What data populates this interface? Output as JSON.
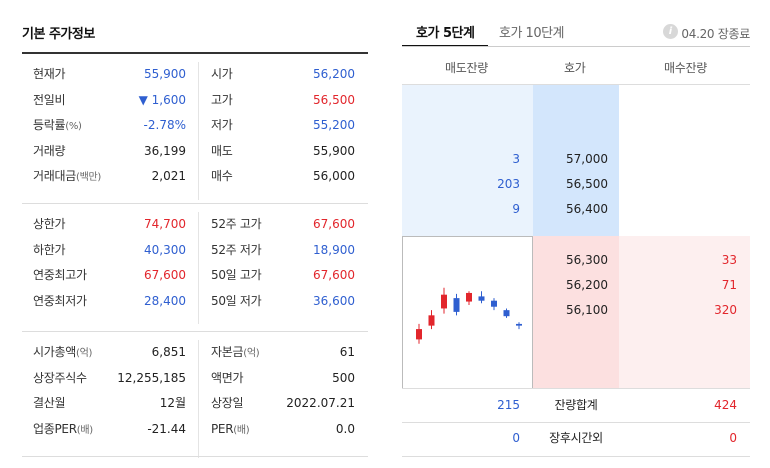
{
  "left": {
    "title": "기본 주가정보",
    "groups": [
      {
        "rows": [
          {
            "label1": "현재가",
            "unit1": "",
            "value1": "55,900",
            "color1": "blue",
            "label2": "시가",
            "unit2": "",
            "value2": "56,200",
            "color2": "blue"
          },
          {
            "label1": "전일비",
            "unit1": "",
            "value1": "▼ 1,600",
            "color1": "blue",
            "label2": "고가",
            "unit2": "",
            "value2": "56,500",
            "color2": "red"
          },
          {
            "label1": "등락률",
            "unit1": "(%)",
            "value1": "-2.78%",
            "color1": "blue",
            "label2": "저가",
            "unit2": "",
            "value2": "55,200",
            "color2": "blue"
          },
          {
            "label1": "거래량",
            "unit1": "",
            "value1": "36,199",
            "color1": "",
            "label2": "매도",
            "unit2": "",
            "value2": "55,900",
            "color2": ""
          },
          {
            "label1": "거래대금",
            "unit1": "(백만)",
            "value1": "2,021",
            "color1": "",
            "label2": "매수",
            "unit2": "",
            "value2": "56,000",
            "color2": ""
          }
        ]
      },
      {
        "rows": [
          {
            "label1": "상한가",
            "unit1": "",
            "value1": "74,700",
            "color1": "red",
            "label2": "52주 고가",
            "unit2": "",
            "value2": "67,600",
            "color2": "red"
          },
          {
            "label1": "하한가",
            "unit1": "",
            "value1": "40,300",
            "color1": "blue",
            "label2": "52주 저가",
            "unit2": "",
            "value2": "18,900",
            "color2": "blue"
          },
          {
            "label1": "연중최고가",
            "unit1": "",
            "value1": "67,600",
            "color1": "red",
            "label2": "50일 고가",
            "unit2": "",
            "value2": "67,600",
            "color2": "red"
          },
          {
            "label1": "연중최저가",
            "unit1": "",
            "value1": "28,400",
            "color1": "blue",
            "label2": "50일 저가",
            "unit2": "",
            "value2": "36,600",
            "color2": "blue"
          }
        ]
      },
      {
        "rows": [
          {
            "label1": "시가총액",
            "unit1": "(억)",
            "value1": "6,851",
            "color1": "",
            "label2": "자본금",
            "unit2": "(억)",
            "value2": "61",
            "color2": ""
          },
          {
            "label1": "상장주식수",
            "unit1": "",
            "value1": "12,255,185",
            "color1": "",
            "label2": "액면가",
            "unit2": "",
            "value2": "500",
            "color2": ""
          },
          {
            "label1": "결산월",
            "unit1": "",
            "value1": "12월",
            "color1": "",
            "label2": "상장일",
            "unit2": "",
            "value2": "2022.07.21",
            "color2": ""
          },
          {
            "label1": "업종PER",
            "unit1": "(배)",
            "value1": "-21.44",
            "color1": "",
            "label2": "PER",
            "unit2": "(배)",
            "value2": "0.0",
            "color2": ""
          }
        ]
      }
    ]
  },
  "right": {
    "tabs": [
      {
        "label": "호가 5단계",
        "active": true
      },
      {
        "label": "호가 10단계",
        "active": false
      }
    ],
    "info_icon": "info-icon",
    "market_time": "04.20 장종료",
    "headers": {
      "sell": "매도잔량",
      "price": "호가",
      "buy": "매수잔량"
    },
    "asks": [
      {
        "volume": "3",
        "price": "57,000"
      },
      {
        "volume": "203",
        "price": "56,500"
      },
      {
        "volume": "9",
        "price": "56,400"
      }
    ],
    "bids": [
      {
        "price": "56,300",
        "volume": "33"
      },
      {
        "price": "56,200",
        "volume": "71"
      },
      {
        "price": "56,100",
        "volume": "320"
      }
    ],
    "summary": [
      {
        "left": "215",
        "label": "잔량합계",
        "right": "424"
      },
      {
        "left": "0",
        "label": "장후시간외",
        "right": "0"
      }
    ],
    "colors": {
      "up": "#e2262c",
      "down": "#2f5fd0"
    },
    "candles": [
      {
        "open": 0.1,
        "close": 0.22,
        "high": 0.28,
        "low": 0.05,
        "dir": "up"
      },
      {
        "open": 0.26,
        "close": 0.38,
        "high": 0.44,
        "low": 0.22,
        "dir": "up"
      },
      {
        "open": 0.46,
        "close": 0.62,
        "high": 0.7,
        "low": 0.4,
        "dir": "up"
      },
      {
        "open": 0.58,
        "close": 0.42,
        "high": 0.63,
        "low": 0.38,
        "dir": "down"
      },
      {
        "open": 0.54,
        "close": 0.64,
        "high": 0.66,
        "low": 0.5,
        "dir": "up"
      },
      {
        "open": 0.6,
        "close": 0.55,
        "high": 0.66,
        "low": 0.52,
        "dir": "down"
      },
      {
        "open": 0.55,
        "close": 0.48,
        "high": 0.58,
        "low": 0.44,
        "dir": "down"
      },
      {
        "open": 0.44,
        "close": 0.37,
        "high": 0.46,
        "low": 0.35,
        "dir": "down"
      },
      {
        "open": 0.28,
        "close": 0.26,
        "high": 0.3,
        "low": 0.22,
        "dir": "down"
      }
    ]
  }
}
